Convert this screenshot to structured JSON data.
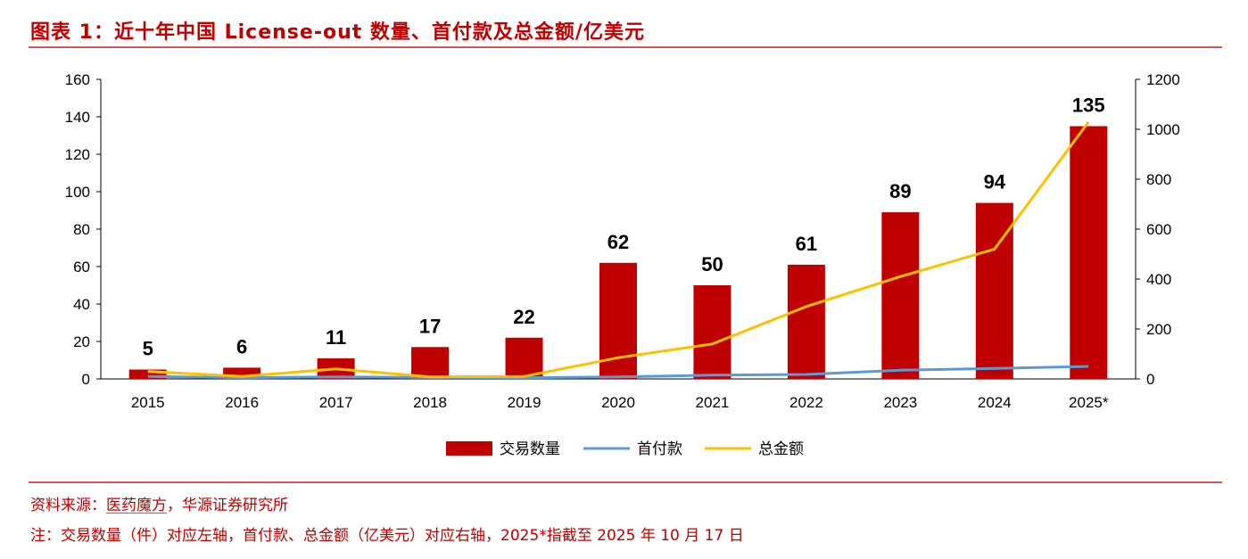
{
  "title": "图表 1：近十年中国 License-out 数量、首付款及总金额/亿美元",
  "chart_data": {
    "type": "bar",
    "categories": [
      "2015",
      "2016",
      "2017",
      "2018",
      "2019",
      "2020",
      "2021",
      "2022",
      "2023",
      "2024",
      "2025*"
    ],
    "series": [
      {
        "name": "交易数量",
        "type": "bar",
        "axis": "left",
        "color": "#c00000",
        "values": [
          5,
          6,
          11,
          17,
          22,
          62,
          50,
          61,
          89,
          94,
          135
        ]
      },
      {
        "name": "首付款",
        "type": "line",
        "axis": "right",
        "color": "#5b9bd5",
        "values": [
          10,
          5,
          8,
          6,
          5,
          8,
          15,
          18,
          35,
          42,
          50
        ]
      },
      {
        "name": "总金额",
        "type": "line",
        "axis": "right",
        "color": "#ffc000",
        "values": [
          30,
          10,
          40,
          8,
          10,
          85,
          140,
          290,
          410,
          520,
          1030
        ]
      }
    ],
    "y_left": {
      "ticks": [
        "0",
        "20",
        "40",
        "60",
        "80",
        "100",
        "120",
        "140",
        "160"
      ],
      "lim": [
        0,
        160
      ]
    },
    "y_right": {
      "ticks": [
        "0",
        "200",
        "400",
        "600",
        "800",
        "1000",
        "1200"
      ],
      "lim": [
        0,
        1200
      ]
    },
    "data_labels": [
      "5",
      "6",
      "11",
      "17",
      "22",
      "62",
      "50",
      "61",
      "89",
      "94",
      "135"
    ],
    "legend_position": "bottom"
  },
  "notes": {
    "source_prefix": "资料来源：",
    "source_link": "医药魔方",
    "source_suffix": "，华源证券研究所",
    "note": "注：交易数量（件）对应左轴，首付款、总金额（亿美元）对应右轴，2025*指截至 2025 年 10 月 17 日"
  }
}
